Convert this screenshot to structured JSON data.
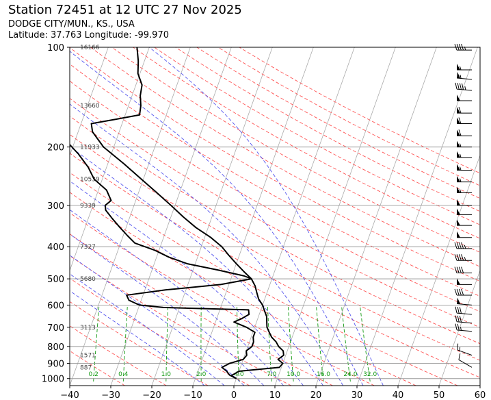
{
  "header": {
    "title": "Station 72451 at 12 UTC 27 Nov 2025",
    "location": "DODGE CITY/MUN., KS., USA",
    "coords": "Latitude: 37.763 Longitude: -99.970"
  },
  "colors": {
    "dry_adiabat": "#ff5555",
    "moist_adiabat": "#5555ee",
    "mixing_ratio": "#119911",
    "isotherm": "#aaaaaa",
    "profile": "#000000",
    "height_label": "#444444"
  },
  "chart_data": {
    "type": "skew-t",
    "x_axis": {
      "label": "",
      "range": [
        -40,
        60
      ],
      "ticks": [
        -40,
        -30,
        -20,
        -10,
        0,
        10,
        20,
        30,
        40,
        50,
        60
      ]
    },
    "y_axis": {
      "label": "",
      "scale": "log",
      "range": [
        1050,
        100
      ],
      "ticks": [
        100,
        200,
        300,
        400,
        500,
        600,
        700,
        800,
        900,
        1000
      ]
    },
    "height_labels": [
      {
        "p": 100,
        "text": "16166"
      },
      {
        "p": 150,
        "text": "13660"
      },
      {
        "p": 200,
        "text": "11933"
      },
      {
        "p": 250,
        "text": "10539"
      },
      {
        "p": 300,
        "text": "9339"
      },
      {
        "p": 400,
        "text": "7327"
      },
      {
        "p": 500,
        "text": "5680"
      },
      {
        "p": 700,
        "text": "3113"
      },
      {
        "p": 850,
        "text": "1571"
      },
      {
        "p": 925,
        "text": "887"
      }
    ],
    "mixing_ratio_labels": [
      "0.2",
      "0.4",
      "1.0",
      "2.0",
      "4.0",
      "7.0",
      "10.0",
      "16.0",
      "24.0",
      "32.0"
    ],
    "temperature": [
      {
        "p": 1000,
        "t": 0.0
      },
      {
        "p": 980,
        "t": -1.5
      },
      {
        "p": 950,
        "t": 0.0
      },
      {
        "p": 925,
        "t": 9.5
      },
      {
        "p": 900,
        "t": 10.0
      },
      {
        "p": 875,
        "t": 8.5
      },
      {
        "p": 850,
        "t": 9.5
      },
      {
        "p": 825,
        "t": 9.0
      },
      {
        "p": 800,
        "t": 7.5
      },
      {
        "p": 775,
        "t": 6.5
      },
      {
        "p": 750,
        "t": 5.0
      },
      {
        "p": 725,
        "t": 4.0
      },
      {
        "p": 700,
        "t": 3.0
      },
      {
        "p": 675,
        "t": 2.5
      },
      {
        "p": 650,
        "t": 2.0
      },
      {
        "p": 625,
        "t": 1.0
      },
      {
        "p": 600,
        "t": 0.0
      },
      {
        "p": 575,
        "t": -1.5
      },
      {
        "p": 550,
        "t": -2.5
      },
      {
        "p": 525,
        "t": -3.5
      },
      {
        "p": 500,
        "t": -5.0
      },
      {
        "p": 475,
        "t": -7.5
      },
      {
        "p": 450,
        "t": -10.0
      },
      {
        "p": 425,
        "t": -12.5
      },
      {
        "p": 400,
        "t": -15.0
      },
      {
        "p": 375,
        "t": -18.5
      },
      {
        "p": 350,
        "t": -23.0
      },
      {
        "p": 325,
        "t": -27.0
      },
      {
        "p": 300,
        "t": -31.0
      },
      {
        "p": 275,
        "t": -35.5
      },
      {
        "p": 250,
        "t": -40.5
      },
      {
        "p": 225,
        "t": -46.0
      },
      {
        "p": 200,
        "t": -52.5
      },
      {
        "p": 180,
        "t": -56.5
      },
      {
        "p": 170,
        "t": -57.5
      },
      {
        "p": 165,
        "t": -52.0
      },
      {
        "p": 160,
        "t": -46.5
      },
      {
        "p": 150,
        "t": -47.0
      },
      {
        "p": 140,
        "t": -48.0
      },
      {
        "p": 130,
        "t": -48.5
      },
      {
        "p": 120,
        "t": -50.5
      },
      {
        "p": 110,
        "t": -51.5
      },
      {
        "p": 100,
        "t": -53.0
      }
    ],
    "dewpoint": [
      {
        "p": 1000,
        "t": 0.0
      },
      {
        "p": 975,
        "t": -2.0
      },
      {
        "p": 950,
        "t": -3.0
      },
      {
        "p": 925,
        "t": -4.5
      },
      {
        "p": 900,
        "t": -3.0
      },
      {
        "p": 875,
        "t": 0.0
      },
      {
        "p": 850,
        "t": 0.5
      },
      {
        "p": 825,
        "t": 0.0
      },
      {
        "p": 800,
        "t": 1.0
      },
      {
        "p": 775,
        "t": 1.0
      },
      {
        "p": 750,
        "t": 0.5
      },
      {
        "p": 725,
        "t": 0.5
      },
      {
        "p": 700,
        "t": -2.0
      },
      {
        "p": 675,
        "t": -5.5
      },
      {
        "p": 660,
        "t": -4.0
      },
      {
        "p": 640,
        "t": -2.5
      },
      {
        "p": 620,
        "t": -3.0
      },
      {
        "p": 610,
        "t": -24.0
      },
      {
        "p": 600,
        "t": -30.0
      },
      {
        "p": 590,
        "t": -31.5
      },
      {
        "p": 580,
        "t": -33.0
      },
      {
        "p": 560,
        "t": -34.0
      },
      {
        "p": 540,
        "t": -25.0
      },
      {
        "p": 520,
        "t": -12.0
      },
      {
        "p": 500,
        "t": -5.0
      },
      {
        "p": 490,
        "t": -7.0
      },
      {
        "p": 470,
        "t": -14.0
      },
      {
        "p": 450,
        "t": -22.0
      },
      {
        "p": 430,
        "t": -27.0
      },
      {
        "p": 410,
        "t": -31.0
      },
      {
        "p": 390,
        "t": -36.5
      },
      {
        "p": 370,
        "t": -39.0
      },
      {
        "p": 350,
        "t": -41.5
      },
      {
        "p": 330,
        "t": -44.0
      },
      {
        "p": 310,
        "t": -46.5
      },
      {
        "p": 300,
        "t": -47.0
      },
      {
        "p": 290,
        "t": -46.0
      },
      {
        "p": 270,
        "t": -48.0
      },
      {
        "p": 250,
        "t": -52.0
      },
      {
        "p": 230,
        "t": -54.5
      },
      {
        "p": 210,
        "t": -58.0
      },
      {
        "p": 190,
        "t": -62.5
      },
      {
        "p": 170,
        "t": -66.0
      },
      {
        "p": 150,
        "t": -68.5
      },
      {
        "p": 135,
        "t": -68.0
      },
      {
        "p": 120,
        "t": -69.5
      },
      {
        "p": 110,
        "t": -71.5
      },
      {
        "p": 100,
        "t": -74.0
      }
    ],
    "wind_barbs": [
      {
        "p": 102,
        "dir": 270,
        "spd": 45
      },
      {
        "p": 117,
        "dir": 270,
        "spd": 55
      },
      {
        "p": 125,
        "dir": 275,
        "spd": 55
      },
      {
        "p": 135,
        "dir": 275,
        "spd": 45
      },
      {
        "p": 145,
        "dir": 270,
        "spd": 50
      },
      {
        "p": 158,
        "dir": 270,
        "spd": 60
      },
      {
        "p": 170,
        "dir": 270,
        "spd": 60
      },
      {
        "p": 185,
        "dir": 270,
        "spd": 60
      },
      {
        "p": 200,
        "dir": 270,
        "spd": 55
      },
      {
        "p": 215,
        "dir": 270,
        "spd": 55
      },
      {
        "p": 235,
        "dir": 270,
        "spd": 55
      },
      {
        "p": 255,
        "dir": 270,
        "spd": 55
      },
      {
        "p": 275,
        "dir": 270,
        "spd": 55
      },
      {
        "p": 300,
        "dir": 270,
        "spd": 50
      },
      {
        "p": 320,
        "dir": 270,
        "spd": 50
      },
      {
        "p": 345,
        "dir": 270,
        "spd": 50
      },
      {
        "p": 375,
        "dir": 270,
        "spd": 50
      },
      {
        "p": 405,
        "dir": 270,
        "spd": 45
      },
      {
        "p": 440,
        "dir": 270,
        "spd": 45
      },
      {
        "p": 480,
        "dir": 270,
        "spd": 40
      },
      {
        "p": 520,
        "dir": 270,
        "spd": 50
      },
      {
        "p": 560,
        "dir": 270,
        "spd": 40
      },
      {
        "p": 600,
        "dir": 275,
        "spd": 50
      },
      {
        "p": 640,
        "dir": 275,
        "spd": 30
      },
      {
        "p": 680,
        "dir": 275,
        "spd": 30
      },
      {
        "p": 720,
        "dir": 275,
        "spd": 25
      },
      {
        "p": 850,
        "dir": 290,
        "spd": 15
      },
      {
        "p": 925,
        "dir": 300,
        "spd": 10
      }
    ]
  }
}
